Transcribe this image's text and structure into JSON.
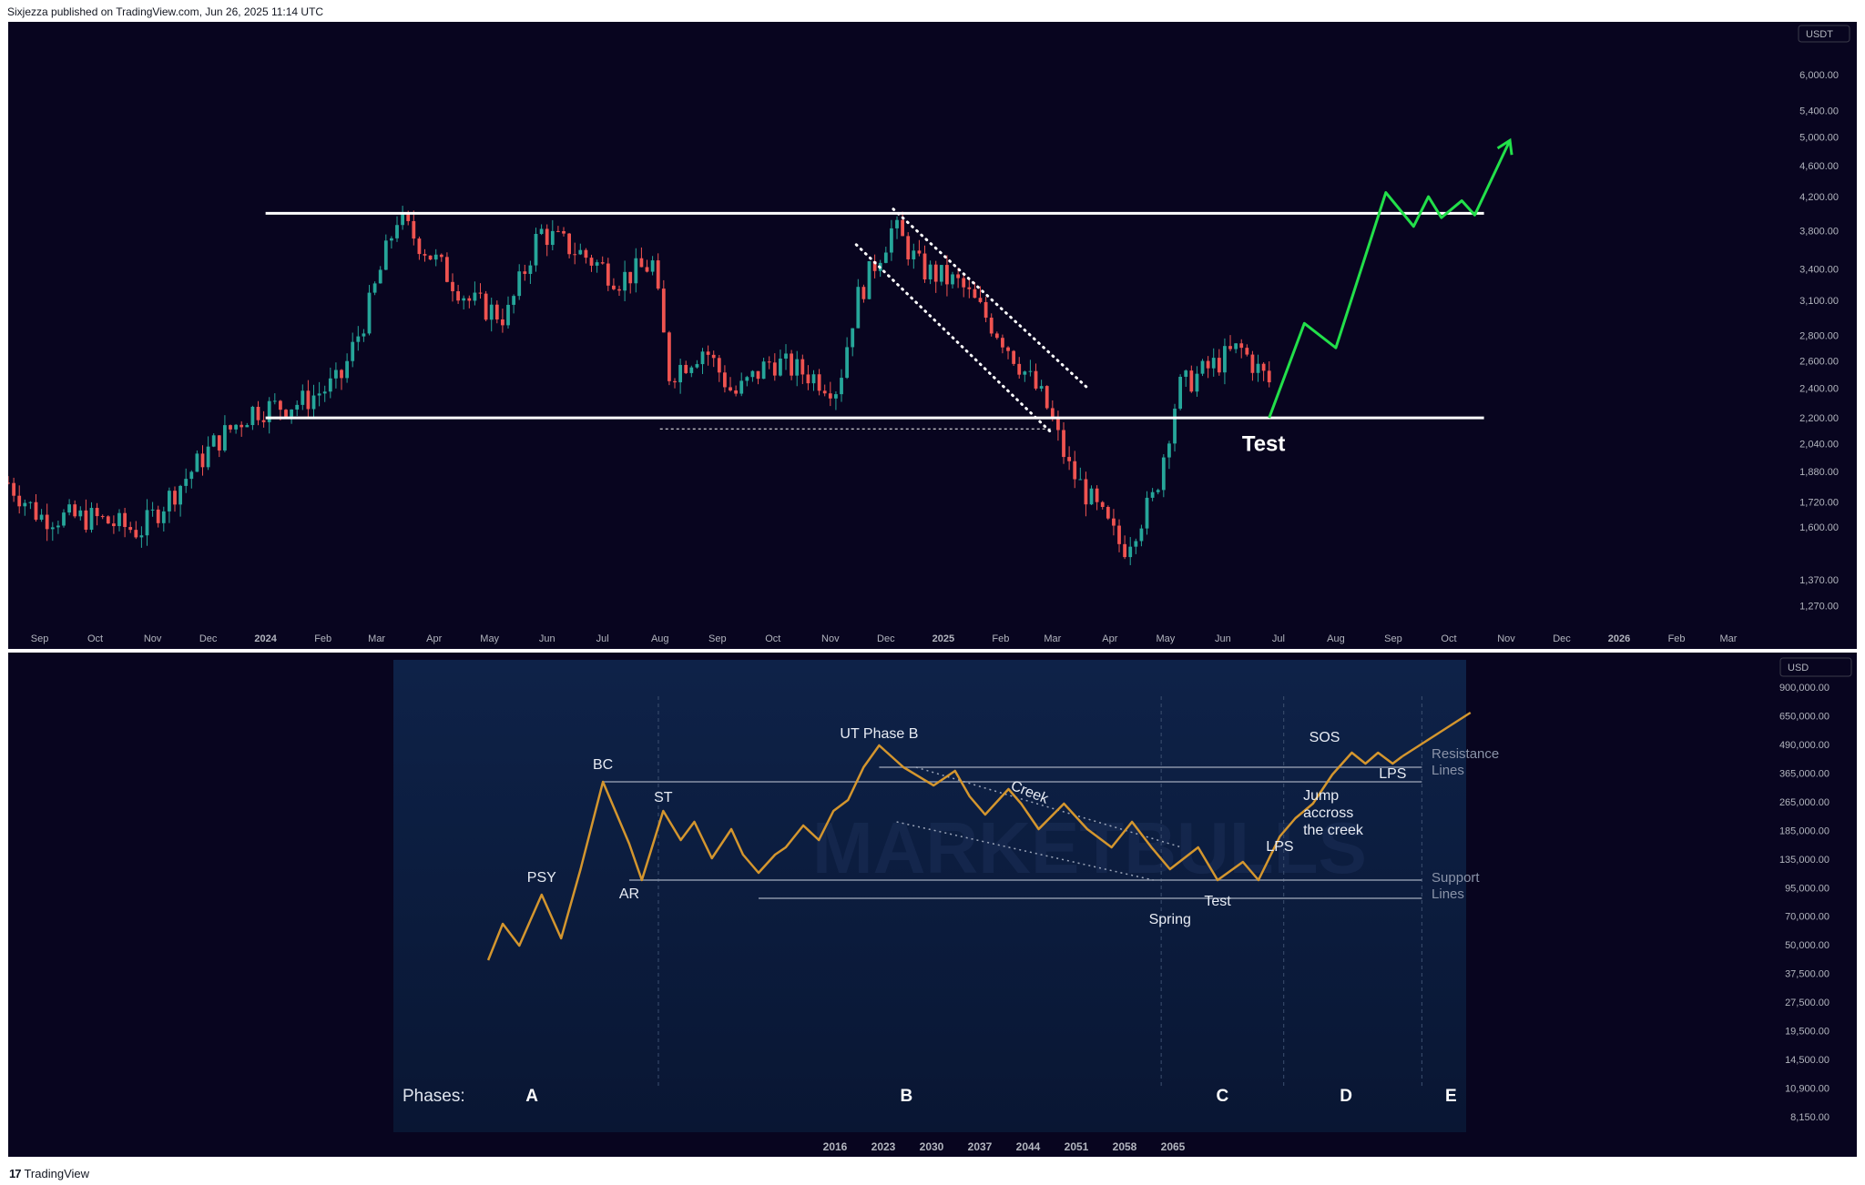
{
  "header": {
    "published_text": "Sixjezza published on TradingView.com, Jun 26, 2025 11:14 UTC"
  },
  "footer": {
    "brand": "TradingView",
    "logo_glyph": "17"
  },
  "colors": {
    "background": "#08051f",
    "candle_up": "#26a69a",
    "candle_down": "#ef5350",
    "level_line": "#ffffff",
    "projection": "#22e04a",
    "schematic_line": "#d4962e",
    "schematic_bg": "#0b1a3a",
    "axis_text": "#b2b5be"
  },
  "chart_data": [
    {
      "type": "candlestick",
      "currency_label": "USDT",
      "y_scale": "log",
      "ylim": [
        1200,
        7000
      ],
      "y_ticks": [
        "6,000.00",
        "5,400.00",
        "5,000.00",
        "4,600.00",
        "4,200.00",
        "3,800.00",
        "3,400.00",
        "3,100.00",
        "2,800.00",
        "2,600.00",
        "2,400.00",
        "2,200.00",
        "2,040.00",
        "1,880.00",
        "1,720.00",
        "1,600.00",
        "1,370.00",
        "1,270.00"
      ],
      "x_ticks": [
        "Sep",
        "Oct",
        "Nov",
        "Dec",
        "2024",
        "Feb",
        "Mar",
        "Apr",
        "May",
        "Jun",
        "Jul",
        "Aug",
        "Sep",
        "Oct",
        "Nov",
        "Dec",
        "2025",
        "Feb",
        "Mar",
        "Apr",
        "May",
        "Jun",
        "Jul",
        "Aug",
        "Sep",
        "Oct",
        "Nov",
        "Dec",
        "2026",
        "Feb",
        "Mar"
      ],
      "x_range": [
        "2023-08-15",
        "2026-03-31"
      ],
      "monthly_closes": [
        {
          "date": "2023-08-15",
          "close": 1820
        },
        {
          "date": "2023-09-01",
          "close": 1650
        },
        {
          "date": "2023-10-01",
          "close": 1640
        },
        {
          "date": "2023-10-25",
          "close": 1580
        },
        {
          "date": "2023-11-15",
          "close": 1800
        },
        {
          "date": "2023-12-05",
          "close": 2050
        },
        {
          "date": "2023-12-25",
          "close": 2250
        },
        {
          "date": "2024-01-20",
          "close": 2300
        },
        {
          "date": "2024-02-10",
          "close": 2450
        },
        {
          "date": "2024-02-25",
          "close": 3000
        },
        {
          "date": "2024-03-12",
          "close": 3950
        },
        {
          "date": "2024-04-01",
          "close": 3500
        },
        {
          "date": "2024-04-20",
          "close": 3100
        },
        {
          "date": "2024-05-10",
          "close": 2950
        },
        {
          "date": "2024-05-28",
          "close": 3800
        },
        {
          "date": "2024-06-20",
          "close": 3550
        },
        {
          "date": "2024-07-10",
          "close": 3300
        },
        {
          "date": "2024-07-28",
          "close": 3450
        },
        {
          "date": "2024-08-06",
          "close": 2500
        },
        {
          "date": "2024-08-25",
          "close": 2700
        },
        {
          "date": "2024-09-10",
          "close": 2350
        },
        {
          "date": "2024-09-30",
          "close": 2600
        },
        {
          "date": "2024-10-20",
          "close": 2500
        },
        {
          "date": "2024-11-05",
          "close": 2400
        },
        {
          "date": "2024-11-15",
          "close": 3100
        },
        {
          "date": "2024-12-05",
          "close": 3850
        },
        {
          "date": "2024-12-20",
          "close": 3400
        },
        {
          "date": "2025-01-10",
          "close": 3250
        },
        {
          "date": "2025-02-01",
          "close": 2800
        },
        {
          "date": "2025-02-25",
          "close": 2300
        },
        {
          "date": "2025-03-10",
          "close": 1900
        },
        {
          "date": "2025-04-08",
          "close": 1500
        },
        {
          "date": "2025-04-25",
          "close": 1750
        },
        {
          "date": "2025-05-08",
          "close": 2400
        },
        {
          "date": "2025-05-25",
          "close": 2550
        },
        {
          "date": "2025-06-10",
          "close": 2700
        },
        {
          "date": "2025-06-26",
          "close": 2440
        }
      ],
      "resistance_level": 4000,
      "support_level": 2200,
      "support_line_dashed": 2130,
      "annotations": [
        {
          "text": "Test",
          "date": "2025-06-23",
          "price": 2050
        }
      ],
      "projection": [
        {
          "date": "2025-06-26",
          "price": 2200
        },
        {
          "date": "2025-07-15",
          "price": 2900
        },
        {
          "date": "2025-08-01",
          "price": 2700
        },
        {
          "date": "2025-08-28",
          "price": 4250
        },
        {
          "date": "2025-09-12",
          "price": 3850
        },
        {
          "date": "2025-09-20",
          "price": 4200
        },
        {
          "date": "2025-09-27",
          "price": 3950
        },
        {
          "date": "2025-10-08",
          "price": 4150
        },
        {
          "date": "2025-10-15",
          "price": 3980
        },
        {
          "date": "2025-11-03",
          "price": 4950
        }
      ]
    },
    {
      "type": "line",
      "currency_label": "USD",
      "y_scale": "log",
      "y_ticks": [
        "900,000.00",
        "650,000.00",
        "490,000.00",
        "365,000.00",
        "265,000.00",
        "185,000.00",
        "135,000.00",
        "95,000.00",
        "70,000.00",
        "50,000.00",
        "37,500.00",
        "27,500.00",
        "19,500.00",
        "14,500.00",
        "10,900.00",
        "8,150.00"
      ],
      "x_ticks": [
        "2016",
        "2023",
        "2030",
        "2037",
        "2044",
        "2051",
        "2058",
        "2065"
      ],
      "labels": [
        "PSY",
        "BC",
        "AR",
        "ST",
        "UT Phase B",
        "Creek",
        "Spring",
        "Test",
        "LPS",
        "SOS",
        "LPS",
        "Jump accross the creek",
        "Resistance Lines",
        "Support Lines"
      ],
      "phases": [
        "A",
        "B",
        "C",
        "D",
        "E"
      ],
      "phases_label": "Phases:",
      "watermark": "MARKETBULLS",
      "path": [
        [
          0.06,
          0.8
        ],
        [
          0.075,
          0.7
        ],
        [
          0.092,
          0.76
        ],
        [
          0.115,
          0.62
        ],
        [
          0.135,
          0.74
        ],
        [
          0.155,
          0.55
        ],
        [
          0.178,
          0.31
        ],
        [
          0.205,
          0.48
        ],
        [
          0.218,
          0.58
        ],
        [
          0.24,
          0.39
        ],
        [
          0.258,
          0.47
        ],
        [
          0.272,
          0.42
        ],
        [
          0.29,
          0.52
        ],
        [
          0.31,
          0.44
        ],
        [
          0.322,
          0.51
        ],
        [
          0.338,
          0.56
        ],
        [
          0.355,
          0.51
        ],
        [
          0.366,
          0.49
        ],
        [
          0.384,
          0.43
        ],
        [
          0.4,
          0.47
        ],
        [
          0.415,
          0.39
        ],
        [
          0.43,
          0.36
        ],
        [
          0.446,
          0.27
        ],
        [
          0.462,
          0.21
        ],
        [
          0.487,
          0.27
        ],
        [
          0.518,
          0.32
        ],
        [
          0.54,
          0.28
        ],
        [
          0.555,
          0.35
        ],
        [
          0.571,
          0.4
        ],
        [
          0.595,
          0.33
        ],
        [
          0.608,
          0.37
        ],
        [
          0.626,
          0.44
        ],
        [
          0.652,
          0.37
        ],
        [
          0.676,
          0.44
        ],
        [
          0.701,
          0.49
        ],
        [
          0.722,
          0.42
        ],
        [
          0.742,
          0.49
        ],
        [
          0.761,
          0.55
        ],
        [
          0.79,
          0.49
        ],
        [
          0.81,
          0.58
        ],
        [
          0.836,
          0.53
        ],
        [
          0.852,
          0.58
        ],
        [
          0.874,
          0.46
        ],
        [
          0.89,
          0.41
        ],
        [
          0.908,
          0.37
        ],
        [
          0.928,
          0.29
        ],
        [
          0.948,
          0.23
        ],
        [
          0.962,
          0.26
        ],
        [
          0.975,
          0.23
        ],
        [
          0.99,
          0.26
        ],
        [
          1.0,
          0.24
        ]
      ]
    }
  ]
}
